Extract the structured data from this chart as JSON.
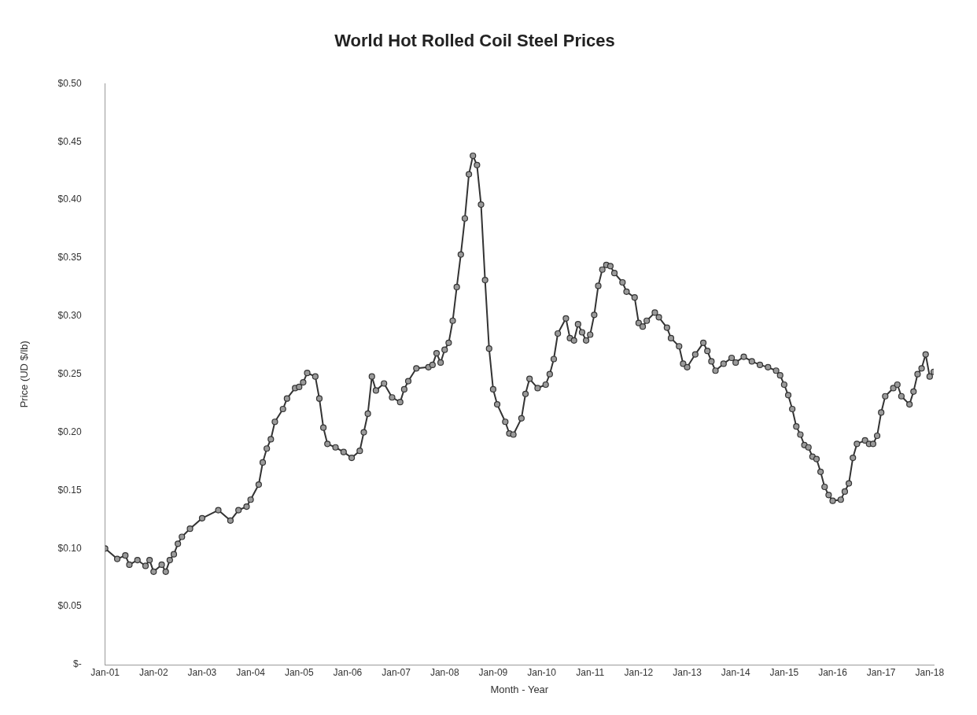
{
  "chart_data": {
    "type": "line",
    "title": "World Hot Rolled Coil Steel Prices",
    "xlabel": "Month - Year",
    "ylabel": "Price (UD $/lb)",
    "x": [
      "2001-01",
      "2001-04",
      "2001-06",
      "2001-07",
      "2001-09",
      "2001-11",
      "2001-12",
      "2002-01",
      "2002-03",
      "2002-04",
      "2002-05",
      "2002-06",
      "2002-07",
      "2002-08",
      "2002-10",
      "2003-01",
      "2003-05",
      "2003-08",
      "2003-10",
      "2003-12",
      "2004-01",
      "2004-03",
      "2004-04",
      "2004-05",
      "2004-06",
      "2004-07",
      "2004-09",
      "2004-10",
      "2004-12",
      "2005-01",
      "2005-02",
      "2005-03",
      "2005-05",
      "2005-06",
      "2005-07",
      "2005-08",
      "2005-10",
      "2005-12",
      "2006-02",
      "2006-04",
      "2006-05",
      "2006-06",
      "2006-07",
      "2006-08",
      "2006-10",
      "2006-12",
      "2007-02",
      "2007-03",
      "2007-04",
      "2007-06",
      "2007-09",
      "2007-10",
      "2007-11",
      "2007-12",
      "2008-01",
      "2008-02",
      "2008-03",
      "2008-04",
      "2008-05",
      "2008-06",
      "2008-07",
      "2008-08",
      "2008-09",
      "2008-10",
      "2008-11",
      "2008-12",
      "2009-01",
      "2009-02",
      "2009-04",
      "2009-05",
      "2009-06",
      "2009-08",
      "2009-09",
      "2009-10",
      "2009-12",
      "2010-02",
      "2010-03",
      "2010-04",
      "2010-05",
      "2010-07",
      "2010-08",
      "2010-09",
      "2010-10",
      "2010-11",
      "2010-12",
      "2011-01",
      "2011-02",
      "2011-03",
      "2011-04",
      "2011-05",
      "2011-06",
      "2011-07",
      "2011-09",
      "2011-10",
      "2011-12",
      "2012-01",
      "2012-02",
      "2012-03",
      "2012-05",
      "2012-06",
      "2012-08",
      "2012-09",
      "2012-11",
      "2012-12",
      "2013-01",
      "2013-03",
      "2013-05",
      "2013-06",
      "2013-07",
      "2013-08",
      "2013-10",
      "2013-12",
      "2014-01",
      "2014-03",
      "2014-05",
      "2014-07",
      "2014-09",
      "2014-11",
      "2014-12",
      "2015-01",
      "2015-02",
      "2015-03",
      "2015-04",
      "2015-05",
      "2015-06",
      "2015-07",
      "2015-08",
      "2015-09",
      "2015-10",
      "2015-11",
      "2015-12",
      "2016-01",
      "2016-03",
      "2016-04",
      "2016-05",
      "2016-06",
      "2016-07",
      "2016-09",
      "2016-10",
      "2016-11",
      "2016-12",
      "2017-01",
      "2017-02",
      "2017-04",
      "2017-05",
      "2017-06",
      "2017-08",
      "2017-09",
      "2017-10",
      "2017-11",
      "2017-12",
      "2018-01",
      "2018-02"
    ],
    "series": [
      {
        "color": "#333333",
        "values": [
          0.1,
          0.091,
          0.094,
          0.086,
          0.09,
          0.085,
          0.09,
          0.08,
          0.086,
          0.08,
          0.09,
          0.095,
          0.104,
          0.11,
          0.117,
          0.126,
          0.133,
          0.124,
          0.133,
          0.136,
          0.142,
          0.155,
          0.174,
          0.186,
          0.194,
          0.209,
          0.22,
          0.229,
          0.238,
          0.239,
          0.243,
          0.251,
          0.248,
          0.229,
          0.204,
          0.19,
          0.187,
          0.183,
          0.178,
          0.184,
          0.2,
          0.216,
          0.248,
          0.236,
          0.242,
          0.23,
          0.226,
          0.237,
          0.244,
          0.255,
          0.256,
          0.258,
          0.268,
          0.26,
          0.271,
          0.277,
          0.296,
          0.325,
          0.353,
          0.384,
          0.422,
          0.438,
          0.43,
          0.396,
          0.331,
          0.272,
          0.237,
          0.224,
          0.209,
          0.199,
          0.198,
          0.212,
          0.233,
          0.246,
          0.238,
          0.241,
          0.25,
          0.263,
          0.285,
          0.298,
          0.281,
          0.279,
          0.293,
          0.286,
          0.279,
          0.284,
          0.301,
          0.326,
          0.34,
          0.344,
          0.343,
          0.337,
          0.329,
          0.321,
          0.316,
          0.294,
          0.291,
          0.296,
          0.303,
          0.299,
          0.29,
          0.281,
          0.274,
          0.259,
          0.256,
          0.267,
          0.277,
          0.27,
          0.261,
          0.253,
          0.259,
          0.264,
          0.26,
          0.265,
          0.261,
          0.258,
          0.256,
          0.253,
          0.249,
          0.241,
          0.232,
          0.22,
          0.205,
          0.198,
          0.189,
          0.187,
          0.179,
          0.177,
          0.166,
          0.153,
          0.146,
          0.141,
          0.142,
          0.149,
          0.156,
          0.178,
          0.19,
          0.193,
          0.19,
          0.19,
          0.197,
          0.217,
          0.231,
          0.238,
          0.241,
          0.231,
          0.224,
          0.235,
          0.25,
          0.255,
          0.267,
          0.248,
          0.252
        ]
      }
    ],
    "xlim": [
      "2001-01",
      "2018-02"
    ],
    "xticks": [
      {
        "value": "2001-01",
        "label": "Jan-01"
      },
      {
        "value": "2002-01",
        "label": "Jan-02"
      },
      {
        "value": "2003-01",
        "label": "Jan-03"
      },
      {
        "value": "2004-01",
        "label": "Jan-04"
      },
      {
        "value": "2005-01",
        "label": "Jan-05"
      },
      {
        "value": "2006-01",
        "label": "Jan-06"
      },
      {
        "value": "2007-01",
        "label": "Jan-07"
      },
      {
        "value": "2008-01",
        "label": "Jan-08"
      },
      {
        "value": "2009-01",
        "label": "Jan-09"
      },
      {
        "value": "2010-01",
        "label": "Jan-10"
      },
      {
        "value": "2011-01",
        "label": "Jan-11"
      },
      {
        "value": "2012-01",
        "label": "Jan-12"
      },
      {
        "value": "2013-01",
        "label": "Jan-13"
      },
      {
        "value": "2014-01",
        "label": "Jan-14"
      },
      {
        "value": "2015-01",
        "label": "Jan-15"
      },
      {
        "value": "2016-01",
        "label": "Jan-16"
      },
      {
        "value": "2017-01",
        "label": "Jan-17"
      },
      {
        "value": "2018-01",
        "label": "Jan-18"
      }
    ],
    "ylim": [
      0,
      0.5
    ],
    "yticks": [
      {
        "value": 0,
        "label": "$-"
      },
      {
        "value": 0.05,
        "label": "$0.05"
      },
      {
        "value": 0.1,
        "label": "$0.10"
      },
      {
        "value": 0.15,
        "label": "$0.15"
      },
      {
        "value": 0.2,
        "label": "$0.20"
      },
      {
        "value": 0.25,
        "label": "$0.25"
      },
      {
        "value": 0.3,
        "label": "$0.30"
      },
      {
        "value": 0.35,
        "label": "$0.35"
      },
      {
        "value": 0.4,
        "label": "$0.40"
      },
      {
        "value": 0.45,
        "label": "$0.45"
      },
      {
        "value": 0.5,
        "label": "$0.50"
      }
    ],
    "grid": false,
    "legend": false,
    "marker": "circle",
    "line_style": "solid"
  }
}
